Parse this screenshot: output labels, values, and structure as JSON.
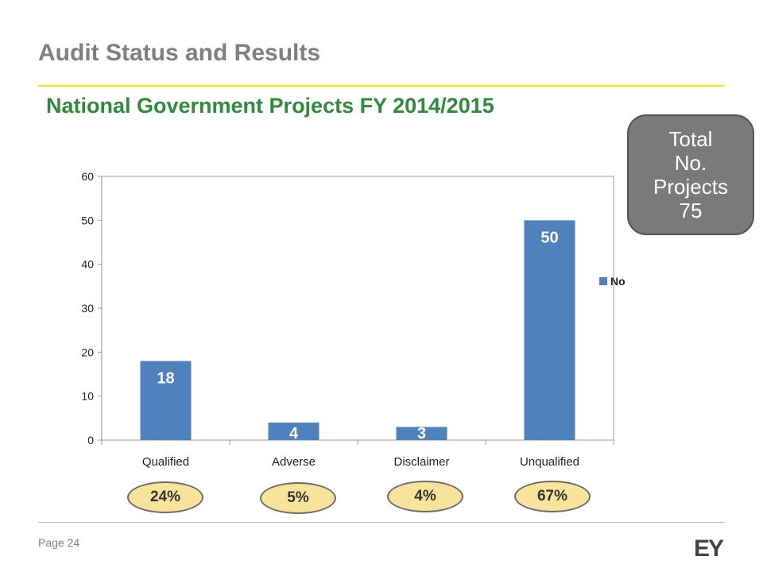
{
  "slide": {
    "heading": "Audit Status and Results",
    "subtitle": "National Government Projects FY 2014/2015",
    "page_label": "Page 24",
    "brand": "EY"
  },
  "total_box": {
    "lines": [
      "Total",
      "No.",
      "Projects",
      "75"
    ]
  },
  "chart_data": {
    "type": "bar",
    "categories": [
      "Qualified",
      "Adverse",
      "Disclaimer",
      "Unqualified"
    ],
    "series": [
      {
        "name": "No",
        "values": [
          18,
          4,
          3,
          50
        ]
      }
    ],
    "data_labels": [
      "18",
      "4",
      "3",
      "50"
    ],
    "percent_labels": [
      "24%",
      "5%",
      "4%",
      "67%"
    ],
    "yticks": [
      "0",
      "10",
      "20",
      "30",
      "40",
      "50",
      "60"
    ],
    "ylim": [
      0,
      60
    ],
    "legend_position": "right",
    "grid": false,
    "bar_color": "#4f81bd"
  }
}
